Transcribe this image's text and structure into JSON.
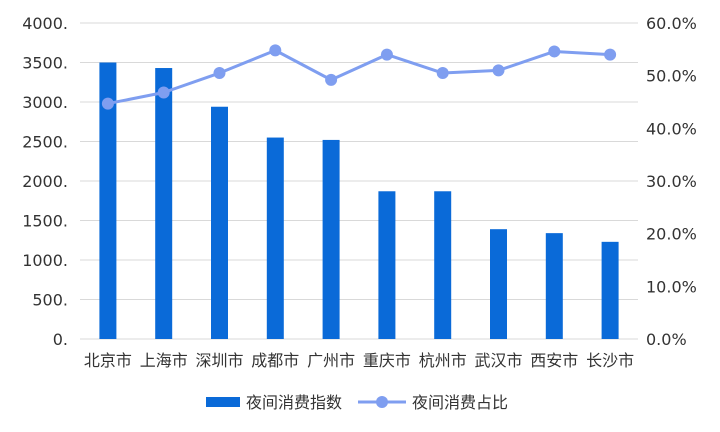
{
  "chart_data": {
    "type": "bar+line",
    "categories": [
      "北京市",
      "上海市",
      "深圳市",
      "成都市",
      "广州市",
      "重庆市",
      "杭州市",
      "武汉市",
      "西安市",
      "长沙市"
    ],
    "series": [
      {
        "name": "夜间消费指数",
        "kind": "bar",
        "axis": "left",
        "color": "#0a6ad8",
        "values": [
          3500,
          3430,
          2940,
          2550,
          2520,
          1870,
          1870,
          1390,
          1340,
          1230
        ]
      },
      {
        "name": "夜间消费占比",
        "kind": "line",
        "axis": "right",
        "color": "#7f9ef0",
        "values": [
          44.7,
          46.8,
          50.5,
          54.8,
          49.2,
          54.0,
          50.5,
          51.0,
          54.6,
          54.0
        ]
      }
    ],
    "y_left": {
      "min": 0,
      "max": 4000,
      "step": 500,
      "tick_labels": [
        "0.",
        "500.",
        "1000.",
        "1500.",
        "2000.",
        "2500.",
        "3000.",
        "3500.",
        "4000."
      ]
    },
    "y_right": {
      "min": 0,
      "max": 60,
      "step": 10,
      "tick_labels": [
        "0.0%",
        "10.0%",
        "20.0%",
        "30.0%",
        "40.0%",
        "50.0%",
        "60.0%"
      ]
    },
    "grid": true,
    "legend_position": "bottom"
  }
}
